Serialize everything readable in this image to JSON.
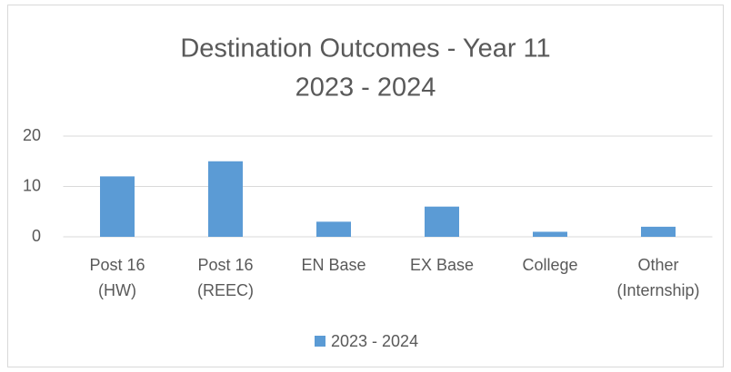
{
  "chart_data": {
    "type": "bar",
    "title": [
      "Destination Outcomes - Year 11",
      "2023 - 2024"
    ],
    "categories": [
      [
        "Post 16",
        "(HW)"
      ],
      [
        "Post 16",
        "(REEC)"
      ],
      [
        "EN Base"
      ],
      [
        "EX Base"
      ],
      [
        "College"
      ],
      [
        "Other",
        "(Internship)"
      ]
    ],
    "series": [
      {
        "name": "2023 - 2024",
        "color": "#5b9bd5",
        "values": [
          12,
          15,
          3,
          6,
          1,
          2
        ]
      }
    ],
    "ylim": [
      0,
      20
    ],
    "yticks": [
      0,
      10,
      20
    ],
    "grid": true,
    "legend": "bottom"
  }
}
